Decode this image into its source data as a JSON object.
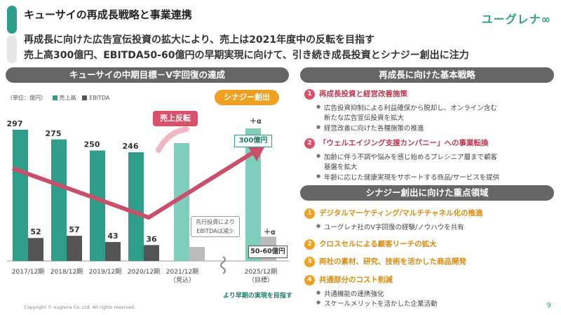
{
  "header": {
    "title": "キューサイの再成長戦略と事業連携",
    "logo": "ユーグレナ∞",
    "headline_1": "再成長に向けた広告宣伝投資の拡大により、売上は2021年度中の反転を目指す",
    "headline_2": "売上高300億円、EBITDA50-60億円の早期実現に向けて、引き続き成長投資とシナジー創出に注力"
  },
  "left_section": {
    "title": "キューサイの中期目標－V字回復の達成",
    "unit": "（単位：億円）",
    "legend_sales": "売上高",
    "legend_ebitda": "EBITDA",
    "callout_reversal": "売上反転",
    "callout_synergy": "シナジー創出",
    "plus_alpha_1": "＋α",
    "plus_alpha_2": "＋α",
    "target_sales": "300億円",
    "target_ebitda": "50-60億円",
    "note": "先行投資により EBITDAは減少",
    "early_target": "より早期の実現を目指す"
  },
  "chart_data": {
    "type": "bar",
    "categories": [
      "2017/12期",
      "2018/12期",
      "2019/12期",
      "2020/12期",
      "2021/12期",
      "2025/12期"
    ],
    "category_sublabels": [
      "",
      "",
      "",
      "",
      "（見込）",
      "（目標）"
    ],
    "series": [
      {
        "name": "売上高",
        "values": [
          297,
          275,
          250,
          246,
          null,
          300
        ],
        "labels": [
          "297",
          "275",
          "250",
          "246",
          "",
          ""
        ]
      },
      {
        "name": "EBITDA",
        "values": [
          52,
          57,
          43,
          36,
          null,
          55
        ],
        "labels": [
          "52",
          "57",
          "43",
          "36",
          "",
          ""
        ]
      }
    ],
    "colors": {
      "sales": "#2e9e8a",
      "sales_light": "#7fcdbd",
      "ebitda": "#555555",
      "ebitda_light": "#bbbbbb",
      "arrow": "#c9506a"
    }
  },
  "right_section_1": {
    "title": "再成長に向けた基本戦略",
    "items": [
      {
        "num": "1",
        "label": "再成長投資と経営改善施策",
        "bullets": [
          "広告投資抑制による利益確保から脱却し、オンライン含む",
          "新たな広告宣伝投資を拡大",
          "経営改善に向けた各種施策の推進"
        ]
      },
      {
        "num": "2",
        "label": "「ウェルエイジング支援カンパニー」への事業転換",
        "bullets": [
          "加齢に伴う不調や悩みを感じ始めるプレシニア層まで顧客",
          "基盤を拡大",
          "年齢に応じた健康実現をサポートする商品/サービスを提供"
        ]
      }
    ]
  },
  "right_section_2": {
    "title": "シナジー創出に向けた重点領域",
    "items": [
      {
        "num": "1",
        "label": "デジタルマーケティング/マルチチャネル化の推進",
        "bullets": [
          "ユーグレナ社のV字回復の経験/ノウハウを共有"
        ]
      },
      {
        "num": "2",
        "label": "クロスセルによる顧客リーチの拡大",
        "bullets": []
      },
      {
        "num": "3",
        "label": "両社の素材、研究、技術を活かした商品開発",
        "bullets": []
      },
      {
        "num": "4",
        "label": "共通部分のコスト削減",
        "bullets": [
          "共通機能の連携強化",
          "スケールメリットを活かした企業活動"
        ]
      }
    ]
  },
  "footer": {
    "copyright": "Copyright © euglena Co.,Ltd. All rights reserved.",
    "page": "9"
  }
}
